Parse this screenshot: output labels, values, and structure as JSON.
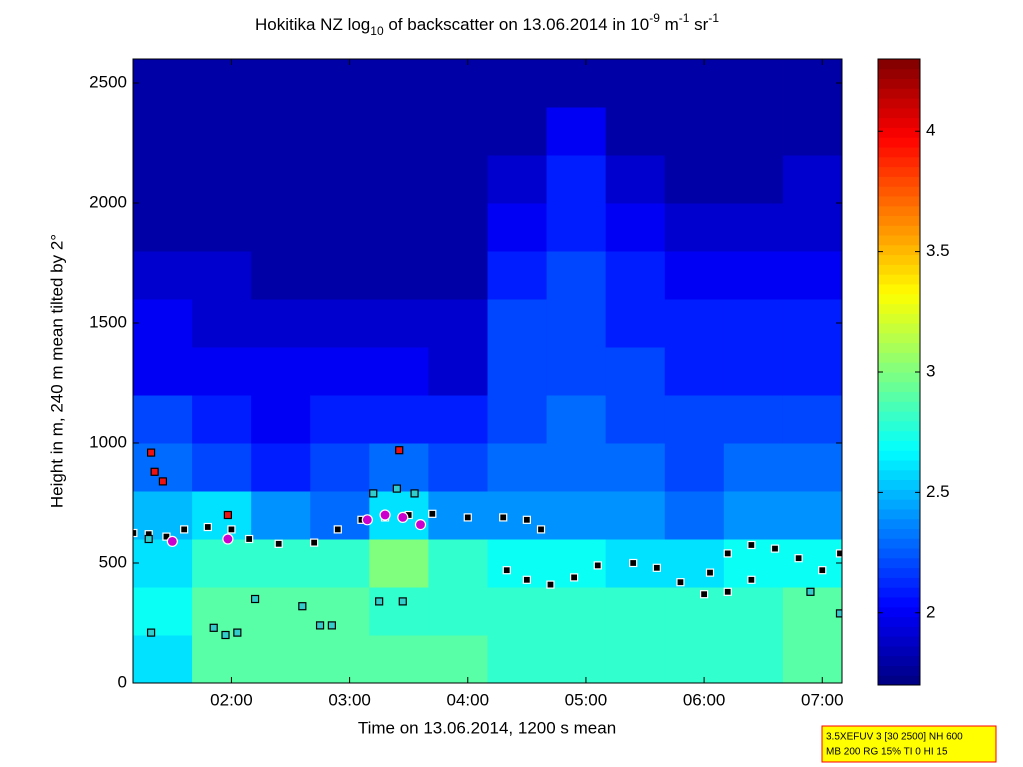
{
  "chart_data": {
    "type": "heatmap",
    "title_parts": [
      "Hokitika NZ log",
      "10",
      " of backscatter on 13.06.2014 in 10",
      "-9",
      " m",
      "-1",
      " sr",
      "-1"
    ],
    "x_label": "Time on 13.06.2014, 1200 s mean",
    "y_label": "Height in m, 240 m mean tilted by 2°",
    "xlim": [
      1.167,
      7.167
    ],
    "xticks": [
      {
        "value": 2,
        "label": "02:00"
      },
      {
        "value": 3,
        "label": "03:00"
      },
      {
        "value": 4,
        "label": "04:00"
      },
      {
        "value": 5,
        "label": "05:00"
      },
      {
        "value": 6,
        "label": "06:00"
      },
      {
        "value": 7,
        "label": "07:00"
      }
    ],
    "ylim": [
      0,
      2600
    ],
    "yticks": [
      0,
      500,
      1000,
      1500,
      2000,
      2500
    ],
    "clim": [
      1.7,
      4.3
    ],
    "cticks": [
      2,
      2.5,
      3,
      3.5,
      4
    ],
    "colormap": "jet",
    "x": [
      1.417,
      1.917,
      2.417,
      2.917,
      3.417,
      3.917,
      4.417,
      4.917,
      5.417,
      5.917,
      6.417,
      6.917
    ],
    "y": [
      100,
      300,
      500,
      700,
      900,
      1100,
      1300,
      1500,
      1700,
      1900,
      2100,
      2300,
      2500
    ],
    "z": [
      [
        2.6,
        2.9,
        2.9,
        2.9,
        2.9,
        2.9,
        2.8,
        2.8,
        2.8,
        2.8,
        2.8,
        2.9
      ],
      [
        2.7,
        2.9,
        2.9,
        2.9,
        2.8,
        2.8,
        2.8,
        2.8,
        2.8,
        2.8,
        2.8,
        2.9
      ],
      [
        2.6,
        2.8,
        2.8,
        2.8,
        3.0,
        2.8,
        2.7,
        2.7,
        2.6,
        2.6,
        2.7,
        2.7
      ],
      [
        2.5,
        2.6,
        2.4,
        2.3,
        2.6,
        2.4,
        2.4,
        2.4,
        2.4,
        2.3,
        2.4,
        2.4
      ],
      [
        2.3,
        2.2,
        2.1,
        2.2,
        2.3,
        2.2,
        2.3,
        2.3,
        2.3,
        2.2,
        2.3,
        2.3
      ],
      [
        2.2,
        2.1,
        2.0,
        2.1,
        2.1,
        2.1,
        2.2,
        2.3,
        2.2,
        2.2,
        2.2,
        2.2
      ],
      [
        2.0,
        2.0,
        2.0,
        2.0,
        2.0,
        1.9,
        2.2,
        2.2,
        2.2,
        2.1,
        2.1,
        2.1
      ],
      [
        2.0,
        1.9,
        1.9,
        1.9,
        1.9,
        1.9,
        2.2,
        2.2,
        2.1,
        2.1,
        2.1,
        2.1
      ],
      [
        1.9,
        1.9,
        1.8,
        1.8,
        1.8,
        1.8,
        2.1,
        2.2,
        2.1,
        2.0,
        2.0,
        2.0
      ],
      [
        1.8,
        1.8,
        1.8,
        1.8,
        1.8,
        1.8,
        2.0,
        2.1,
        2.0,
        1.9,
        1.9,
        1.9
      ],
      [
        1.8,
        1.8,
        1.8,
        1.8,
        1.8,
        1.8,
        1.9,
        2.1,
        1.9,
        1.8,
        1.8,
        1.9
      ],
      [
        1.8,
        1.8,
        1.8,
        1.8,
        1.8,
        1.8,
        1.8,
        2.0,
        1.8,
        1.8,
        1.8,
        1.8
      ],
      [
        1.8,
        1.8,
        1.8,
        1.8,
        1.8,
        1.8,
        1.8,
        1.8,
        1.8,
        1.8,
        1.8,
        1.8
      ]
    ],
    "markers": [
      {
        "shape": "square",
        "color": "#000000",
        "edge": "#ffffff",
        "x": [
          1.17,
          1.3,
          1.45,
          1.6,
          1.8,
          2.0,
          2.15,
          2.4,
          2.7,
          2.9,
          3.1,
          3.3,
          3.5,
          3.7,
          4.0,
          4.3,
          4.5,
          4.62,
          4.33,
          4.5,
          4.7,
          4.9,
          5.1,
          5.4,
          5.6,
          5.8,
          6.0,
          6.2,
          6.4,
          6.05,
          6.2,
          6.4,
          6.6,
          6.8,
          7.0,
          7.15
        ],
        "y": [
          625,
          620,
          610,
          640,
          650,
          640,
          600,
          580,
          585,
          640,
          680,
          690,
          700,
          705,
          690,
          690,
          680,
          640,
          470,
          430,
          410,
          440,
          490,
          500,
          480,
          420,
          370,
          380,
          430,
          460,
          540,
          575,
          560,
          520,
          470,
          540
        ]
      },
      {
        "shape": "square",
        "color": "#33cccc",
        "edge": "#000000",
        "x": [
          1.3,
          1.32,
          1.85,
          1.95,
          2.05,
          2.2,
          2.6,
          2.75,
          2.85,
          3.25,
          3.45,
          3.2,
          3.4,
          3.55,
          6.9,
          7.15
        ],
        "y": [
          600,
          210,
          230,
          200,
          210,
          350,
          320,
          240,
          240,
          340,
          340,
          790,
          810,
          790,
          380,
          290
        ]
      },
      {
        "shape": "square",
        "color": "#ee1111",
        "edge": "#000000",
        "x": [
          1.32,
          1.35,
          1.42,
          1.97,
          3.42
        ],
        "y": [
          960,
          880,
          840,
          700,
          970
        ]
      },
      {
        "shape": "circle",
        "color": "#cc00cc",
        "edge": "#ffffff",
        "x": [
          1.5,
          1.97,
          3.15,
          3.3,
          3.45,
          3.6
        ],
        "y": [
          590,
          600,
          680,
          700,
          690,
          660
        ]
      }
    ],
    "info_lines": [
      "3.5XEFUV 3 [30 2500] NH 600",
      "MB 200 RG 15% TI 0 HI 15"
    ]
  }
}
